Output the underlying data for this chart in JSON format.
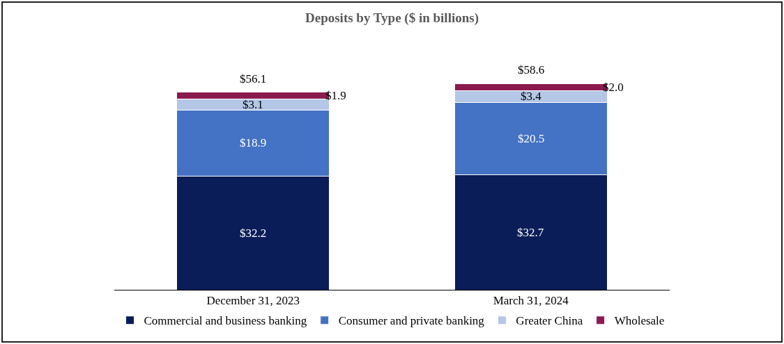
{
  "chart_data": {
    "type": "bar",
    "title": "Deposits by Type ($ in billions)",
    "categories": [
      "December 31, 2023",
      "March 31, 2024"
    ],
    "stacked": true,
    "legend": "bottom",
    "series": [
      {
        "name": "Commercial and business banking",
        "color": "#0b1d58",
        "values": [
          32.2,
          32.7
        ],
        "value_labels": [
          "$32.2",
          "$32.7"
        ]
      },
      {
        "name": "Consumer and private banking",
        "color": "#4472c4",
        "values": [
          18.9,
          20.5
        ],
        "value_labels": [
          "$18.9",
          "$20.5"
        ]
      },
      {
        "name": "Greater China",
        "color": "#b4c7e7",
        "values": [
          3.1,
          3.4
        ],
        "value_labels": [
          "$3.1",
          "$3.4"
        ]
      },
      {
        "name": "Wholesale",
        "color": "#8b1a4f",
        "values": [
          1.9,
          2.0
        ],
        "value_labels": [
          "$1.9",
          "$2.0"
        ]
      }
    ],
    "totals": [
      "$56.1",
      "$58.6"
    ]
  }
}
